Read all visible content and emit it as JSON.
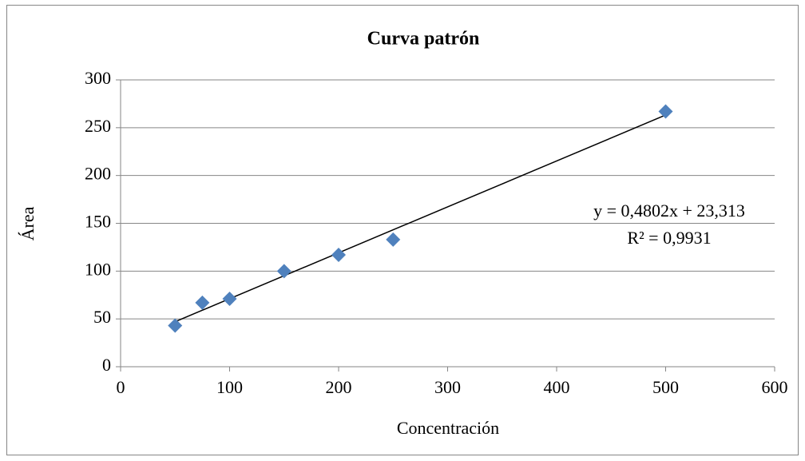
{
  "chart_data": {
    "type": "scatter",
    "title": "Curva patrón",
    "x_label": "Concentración",
    "y_label": "Área",
    "series": [
      {
        "color": "#4f81bd",
        "x": [
          50,
          75,
          100,
          150,
          200,
          250,
          500
        ],
        "values": [
          43,
          67,
          71,
          100,
          117,
          133,
          267
        ]
      }
    ],
    "trendline": {
      "equation": "y = 0,4802x + 23,313",
      "r_squared": "R² = 0,9931",
      "color": "#000000"
    },
    "xlim": [
      0,
      600
    ],
    "xticks": [
      0,
      100,
      200,
      300,
      400,
      500,
      600
    ],
    "ylim": [
      0,
      300
    ],
    "yticks": [
      0,
      50,
      100,
      150,
      200,
      250,
      300
    ],
    "grid": true
  }
}
